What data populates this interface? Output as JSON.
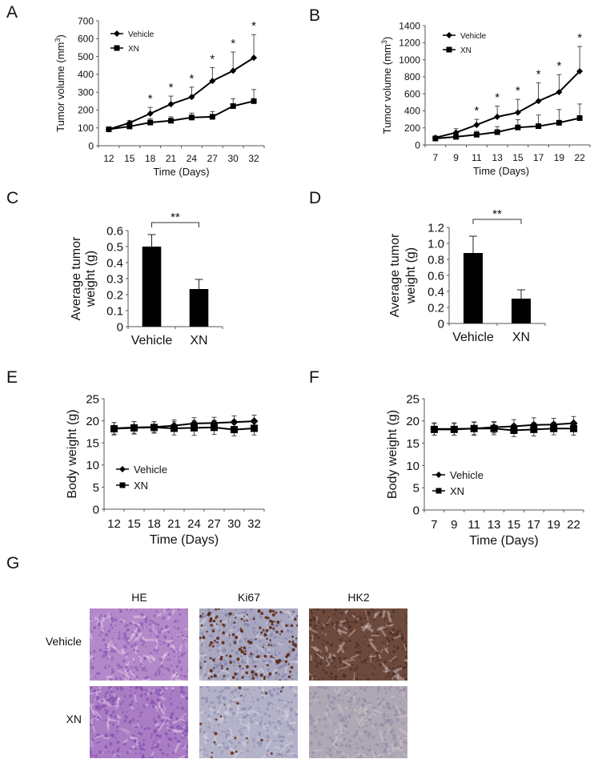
{
  "figure": {
    "panels": {
      "A": "A",
      "B": "B",
      "C": "C",
      "D": "D",
      "E": "E",
      "F": "F",
      "G": "G"
    },
    "legend": {
      "vehicle": "Vehicle",
      "xn": "XN"
    },
    "significance": {
      "single": "*",
      "double": "**"
    }
  },
  "chart_data": [
    {
      "id": "A",
      "type": "line",
      "title": "",
      "xlabel": "Time (Days)",
      "ylabel": "Tumor volume (mm3)",
      "ylabel_main": "Tumor volume (mm",
      "ylabel_sup": "3",
      "ylabel_close": ")",
      "x": [
        12,
        15,
        18,
        21,
        24,
        27,
        30,
        32
      ],
      "x_tick_labels": [
        "12",
        "15",
        "18",
        "21",
        "24",
        "27",
        "30",
        "32"
      ],
      "ylim": [
        0,
        700
      ],
      "y_ticks": [
        0,
        100,
        200,
        300,
        400,
        500,
        600,
        700
      ],
      "y_tick_labels": [
        "0",
        "100",
        "200",
        "300",
        "400",
        "500",
        "600",
        "700"
      ],
      "series": [
        {
          "name": "Vehicle",
          "marker": "diamond",
          "values": [
            92,
            128,
            180,
            233,
            273,
            363,
            420,
            493
          ],
          "error": [
            8,
            12,
            35,
            45,
            55,
            75,
            105,
            130
          ]
        },
        {
          "name": "XN",
          "marker": "square",
          "values": [
            92,
            108,
            130,
            140,
            158,
            162,
            222,
            250
          ],
          "error": [
            8,
            10,
            22,
            22,
            25,
            30,
            42,
            65
          ]
        }
      ],
      "significance": [
        false,
        false,
        true,
        true,
        true,
        true,
        true,
        true
      ],
      "legend_position": "upper-left",
      "grid": false
    },
    {
      "id": "B",
      "type": "line",
      "title": "",
      "xlabel": "Time (Days)",
      "ylabel": "Tumor volume (mm3)",
      "ylabel_main": "Tumor volume (mm",
      "ylabel_sup": "3",
      "ylabel_close": ")",
      "x": [
        7,
        9,
        11,
        13,
        15,
        17,
        19,
        22
      ],
      "x_tick_labels": [
        "7",
        "9",
        "11",
        "13",
        "15",
        "17",
        "19",
        "22"
      ],
      "ylim": [
        0,
        1400
      ],
      "y_ticks": [
        0,
        200,
        400,
        600,
        800,
        1000,
        1200,
        1400
      ],
      "y_tick_labels": [
        "0",
        "200",
        "400",
        "600",
        "800",
        "1000",
        "1200",
        "1400"
      ],
      "series": [
        {
          "name": "Vehicle",
          "marker": "diamond",
          "values": [
            85,
            145,
            235,
            330,
            380,
            515,
            620,
            865
          ],
          "error": [
            15,
            45,
            65,
            125,
            155,
            215,
            205,
            290
          ]
        },
        {
          "name": "XN",
          "marker": "square",
          "values": [
            75,
            95,
            120,
            150,
            205,
            220,
            260,
            315
          ],
          "error": [
            10,
            25,
            40,
            65,
            90,
            130,
            155,
            165
          ]
        }
      ],
      "significance": [
        false,
        false,
        true,
        true,
        true,
        true,
        true,
        true
      ],
      "legend_position": "upper-left",
      "grid": false
    },
    {
      "id": "C",
      "type": "bar",
      "title": "",
      "xlabel": "",
      "ylabel": "Average tumor weight (g)",
      "ylabel_line1": "Average tumor",
      "ylabel_line2": "weight (g)",
      "categories": [
        "Vehicle",
        "XN"
      ],
      "values": [
        0.5,
        0.235
      ],
      "error": [
        0.075,
        0.06
      ],
      "ylim": [
        0,
        0.6
      ],
      "y_ticks": [
        0,
        0.1,
        0.2,
        0.3,
        0.4,
        0.5,
        0.6
      ],
      "y_tick_labels": [
        "0",
        "0.1",
        "0.2",
        "0.3",
        "0.4",
        "0.5",
        "0.6"
      ],
      "annotation": "**",
      "grid": false
    },
    {
      "id": "D",
      "type": "bar",
      "title": "",
      "xlabel": "",
      "ylabel": "Average tumor weight (g)",
      "ylabel_line1": "Average tumor",
      "ylabel_line2": "weight (g)",
      "categories": [
        "Vehicle",
        "XN"
      ],
      "values": [
        0.88,
        0.31
      ],
      "error": [
        0.21,
        0.11
      ],
      "ylim": [
        0,
        1.2
      ],
      "y_ticks": [
        0,
        0.2,
        0.4,
        0.6,
        0.8,
        1.0,
        1.2
      ],
      "y_tick_labels": [
        "0",
        "0.2",
        "0.4",
        "0.6",
        "0.8",
        "1.0",
        "1.2"
      ],
      "annotation": "**",
      "grid": false
    },
    {
      "id": "E",
      "type": "line",
      "title": "",
      "xlabel": "Time (Days)",
      "ylabel": "Body weight (g)",
      "x": [
        12,
        15,
        18,
        21,
        24,
        27,
        30,
        32
      ],
      "x_tick_labels": [
        "12",
        "15",
        "18",
        "21",
        "24",
        "27",
        "30",
        "32"
      ],
      "ylim": [
        0,
        25
      ],
      "y_ticks": [
        0,
        5,
        10,
        15,
        20,
        25
      ],
      "y_tick_labels": [
        "0",
        "5",
        "10",
        "15",
        "20",
        "25"
      ],
      "series": [
        {
          "name": "Vehicle",
          "marker": "diamond",
          "values": [
            18.3,
            18.5,
            18.6,
            18.9,
            19.4,
            19.5,
            19.7,
            19.9
          ],
          "error": [
            1.3,
            1.3,
            1.2,
            1.3,
            1.3,
            1.3,
            1.4,
            1.4
          ]
        },
        {
          "name": "XN",
          "marker": "square",
          "values": [
            18.2,
            18.4,
            18.5,
            18.3,
            18.4,
            18.5,
            18.0,
            18.3
          ],
          "error": [
            1.4,
            1.4,
            1.3,
            1.5,
            1.7,
            1.6,
            1.4,
            1.5
          ]
        }
      ],
      "legend_position": "lower-left",
      "grid": false
    },
    {
      "id": "F",
      "type": "line",
      "title": "",
      "xlabel": "Time (Days)",
      "ylabel": "Body weight (g)",
      "x": [
        7,
        9,
        11,
        13,
        15,
        17,
        19,
        22
      ],
      "x_tick_labels": [
        "7",
        "9",
        "11",
        "13",
        "15",
        "17",
        "19",
        "22"
      ],
      "ylim": [
        0,
        25
      ],
      "y_ticks": [
        0,
        5,
        10,
        15,
        20,
        25
      ],
      "y_tick_labels": [
        "0",
        "5",
        "10",
        "15",
        "20",
        "25"
      ],
      "series": [
        {
          "name": "Vehicle",
          "marker": "diamond",
          "values": [
            18.2,
            18.2,
            18.3,
            18.6,
            18.8,
            19.1,
            19.2,
            19.5
          ],
          "error": [
            1.4,
            1.4,
            1.5,
            1.3,
            1.5,
            1.6,
            1.4,
            1.5
          ]
        },
        {
          "name": "XN",
          "marker": "square",
          "values": [
            18.1,
            18.1,
            18.3,
            18.3,
            17.9,
            18.1,
            18.3,
            18.3
          ],
          "error": [
            1.3,
            1.3,
            1.4,
            1.4,
            1.4,
            1.5,
            1.4,
            1.5
          ]
        }
      ],
      "legend_position": "lower-left",
      "grid": false
    }
  ],
  "histology": {
    "columns": [
      "HE",
      "Ki67",
      "HK2"
    ],
    "rows": [
      "Vehicle",
      "XN"
    ],
    "tile_colors": {
      "HE_Vehicle": "#b489c9",
      "HE_XN": "#a97cc4",
      "Ki67_Vehicle": "#a9a6bf",
      "Ki67_XN": "#b4b2c8",
      "HK2_Vehicle": "#6e4a3d",
      "HK2_XN": "#aea7b4"
    }
  }
}
